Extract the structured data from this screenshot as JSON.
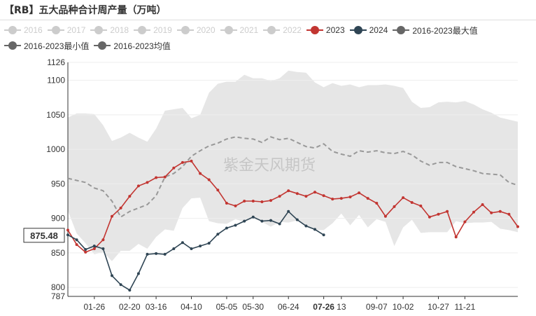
{
  "header": {
    "title": "【RB】五大品种合计周产量（万吨）"
  },
  "legend": [
    {
      "label": "2016",
      "color": "#cccccc",
      "active": false
    },
    {
      "label": "2017",
      "color": "#cccccc",
      "active": false
    },
    {
      "label": "2018",
      "color": "#cccccc",
      "active": false
    },
    {
      "label": "2019",
      "color": "#cccccc",
      "active": false
    },
    {
      "label": "2020",
      "color": "#cccccc",
      "active": false
    },
    {
      "label": "2021",
      "color": "#cccccc",
      "active": false
    },
    {
      "label": "2022",
      "color": "#cccccc",
      "active": false
    },
    {
      "label": "2023",
      "color": "#c23531",
      "active": true
    },
    {
      "label": "2024",
      "color": "#2f4554",
      "active": true
    },
    {
      "label": "2016-2023最大值",
      "color": "#666666",
      "active": true
    },
    {
      "label": "2016-2023最小值",
      "color": "#666666",
      "active": true
    },
    {
      "label": "2016-2023均值",
      "color": "#666666",
      "active": true
    }
  ],
  "watermark": "紫金天风期货",
  "chart_data": {
    "type": "line",
    "ylim": [
      787,
      1126
    ],
    "y_ticks": [
      787,
      800,
      850,
      900,
      950,
      1000,
      1050,
      1100,
      1126
    ],
    "week_count": 52,
    "x_ticks": [
      {
        "label": "01-26",
        "week": 3
      },
      {
        "label": "02-20",
        "week": 7
      },
      {
        "label": "03-16",
        "week": 10
      },
      {
        "label": "04-10",
        "week": 14
      },
      {
        "label": "05-05",
        "week": 18
      },
      {
        "label": "05-30",
        "week": 21
      },
      {
        "label": "06-24",
        "week": 25
      },
      {
        "label": "07-26",
        "week": 29
      },
      {
        "label": "13",
        "week": 31
      },
      {
        "label": "09-07",
        "week": 35
      },
      {
        "label": "10-02",
        "week": 38
      },
      {
        "label": "10-27",
        "week": 42
      },
      {
        "label": "11-21",
        "week": 45
      }
    ],
    "highlight_tick": "07-26",
    "pointer": {
      "label": "875.48",
      "value": 875.48
    },
    "band_max": [
      1046,
      1052,
      1052,
      1051,
      1035,
      1012,
      1017,
      1024,
      1017,
      1011,
      1030,
      1056,
      1058,
      1060,
      1045,
      1050,
      1082,
      1095,
      1098,
      1098,
      1108,
      1103,
      1103,
      1099,
      1103,
      1114,
      1112,
      1111,
      1097,
      1090,
      1096,
      1092,
      1094,
      1090,
      1093,
      1093,
      1094,
      1092,
      1089,
      1069,
      1060,
      1061,
      1068,
      1069,
      1068,
      1070,
      1065,
      1058,
      1053,
      1046,
      1043,
      1040
    ],
    "band_min": [
      911,
      878,
      864,
      848,
      851,
      838,
      853,
      853,
      863,
      856,
      873,
      884,
      882,
      915,
      929,
      930,
      896,
      893,
      892,
      899,
      895,
      900,
      895,
      888,
      895,
      894,
      897,
      888,
      883,
      883,
      893,
      907,
      890,
      905,
      887,
      899,
      895,
      860,
      887,
      898,
      879,
      880,
      880,
      880,
      896,
      893,
      894,
      894,
      895,
      885,
      883,
      880
    ],
    "series": [
      {
        "name": "2016-2023均值",
        "color": "#999999",
        "dashed": true,
        "values": [
          958,
          955,
          952,
          944,
          940,
          925,
          902,
          910,
          915,
          920,
          933,
          960,
          965,
          975,
          990,
          998,
          1005,
          1009,
          1015,
          1018,
          1016,
          1015,
          1010,
          1018,
          1014,
          1016,
          1010,
          1004,
          1002,
          1008,
          997,
          993,
          990,
          998,
          996,
          998,
          995,
          994,
          997,
          992,
          983,
          977,
          981,
          981,
          975,
          972,
          969,
          965,
          964,
          963,
          952,
          948
        ]
      },
      {
        "name": "2023",
        "color": "#c23531",
        "values": [
          883,
          862,
          851,
          856,
          869,
          903,
          915,
          932,
          947,
          952,
          959,
          960,
          973,
          981,
          983,
          965,
          956,
          941,
          922,
          918,
          925,
          925,
          924,
          926,
          932,
          940,
          936,
          932,
          938,
          933,
          928,
          929,
          931,
          937,
          929,
          922,
          903,
          917,
          930,
          923,
          918,
          902,
          906,
          910,
          873,
          895,
          909,
          920,
          908,
          910,
          906,
          888
        ]
      },
      {
        "name": "2024",
        "color": "#2f4554",
        "values": [
          876,
          869,
          855,
          860,
          856,
          817,
          804,
          796,
          820,
          848,
          849,
          848,
          856,
          865,
          856,
          860,
          864,
          877,
          886,
          890,
          896,
          902,
          896,
          897,
          892,
          910,
          898,
          889,
          884,
          876
        ]
      }
    ]
  }
}
